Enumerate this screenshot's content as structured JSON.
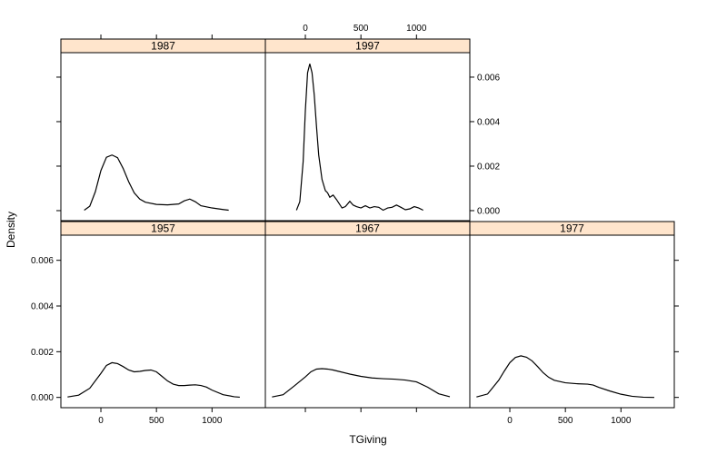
{
  "chart_data": {
    "type": "line",
    "chart_kind": "density-lattice",
    "xlabel": "TGiving",
    "ylabel": "Density",
    "xlim": [
      -360,
      1480
    ],
    "ylim": [
      -0.00045,
      0.0071
    ],
    "x_ticks": [
      0,
      500,
      1000
    ],
    "y_ticks": [
      0.0,
      0.002,
      0.004,
      0.006
    ],
    "x_tick_labels": [
      "0",
      "500",
      "1000"
    ],
    "y_tick_labels": [
      "0.000",
      "0.002",
      "0.004",
      "0.006"
    ],
    "colors": {
      "strip_fill": "#FFE5CC",
      "line": "#000000",
      "frame": "#000000"
    },
    "panels": [
      {
        "label": "1957",
        "x": [
          -300,
          -200,
          -100,
          0,
          50,
          100,
          150,
          200,
          250,
          300,
          350,
          400,
          450,
          500,
          550,
          600,
          650,
          700,
          750,
          800,
          850,
          900,
          950,
          1000,
          1100,
          1200,
          1250
        ],
        "y": [
          2e-05,
          0.0001,
          0.0004,
          0.00105,
          0.0014,
          0.00152,
          0.00148,
          0.00135,
          0.0012,
          0.00112,
          0.00114,
          0.00118,
          0.0012,
          0.00112,
          0.00092,
          0.00072,
          0.00058,
          0.00052,
          0.00052,
          0.00054,
          0.00055,
          0.00052,
          0.00045,
          0.00032,
          0.00012,
          3e-05,
          1e-05
        ]
      },
      {
        "label": "1967",
        "x": [
          -300,
          -200,
          -100,
          0,
          50,
          100,
          150,
          200,
          250,
          300,
          400,
          500,
          600,
          700,
          800,
          900,
          1000,
          1100,
          1200,
          1300
        ],
        "y": [
          2e-05,
          0.00012,
          0.0005,
          0.0009,
          0.00112,
          0.00124,
          0.00126,
          0.00124,
          0.0012,
          0.00114,
          0.00102,
          0.00092,
          0.00085,
          0.00082,
          0.0008,
          0.00076,
          0.00068,
          0.00045,
          0.00016,
          3e-05
        ]
      },
      {
        "label": "1977",
        "x": [
          -300,
          -200,
          -100,
          -50,
          0,
          50,
          100,
          150,
          200,
          250,
          300,
          350,
          400,
          500,
          600,
          700,
          750,
          800,
          900,
          1000,
          1100,
          1200,
          1300
        ],
        "y": [
          2e-05,
          0.00015,
          0.00075,
          0.00115,
          0.00152,
          0.00175,
          0.00182,
          0.00176,
          0.0016,
          0.00135,
          0.00108,
          0.00088,
          0.00075,
          0.00064,
          0.0006,
          0.00058,
          0.00054,
          0.00044,
          0.00028,
          0.00014,
          5e-05,
          1e-05,
          0.0
        ]
      },
      {
        "label": "1987",
        "x": [
          -150,
          -100,
          -50,
          0,
          50,
          100,
          150,
          200,
          250,
          300,
          350,
          400,
          500,
          600,
          700,
          750,
          800,
          850,
          900,
          1000,
          1100,
          1150
        ],
        "y": [
          2e-05,
          0.0002,
          0.00085,
          0.0018,
          0.0024,
          0.0025,
          0.00238,
          0.0019,
          0.0013,
          0.0008,
          0.00052,
          0.00038,
          0.00028,
          0.00026,
          0.0003,
          0.00044,
          0.00052,
          0.0004,
          0.00022,
          0.00012,
          5e-05,
          2e-05
        ]
      },
      {
        "label": "1997",
        "x": [
          -80,
          -50,
          -20,
          0,
          20,
          40,
          60,
          80,
          100,
          120,
          150,
          180,
          200,
          220,
          250,
          280,
          300,
          330,
          360,
          400,
          430,
          460,
          500,
          540,
          580,
          620,
          660,
          700,
          740,
          780,
          820,
          860,
          900,
          940,
          980,
          1020,
          1060
        ],
        "y": [
          2e-05,
          0.0004,
          0.0022,
          0.0045,
          0.0062,
          0.0066,
          0.0062,
          0.0052,
          0.0038,
          0.0025,
          0.0014,
          0.0009,
          0.0008,
          0.0006,
          0.0007,
          0.0005,
          0.00035,
          0.00012,
          0.00018,
          0.00042,
          0.00025,
          0.00018,
          0.00012,
          0.00022,
          0.00012,
          0.00018,
          0.00015,
          2e-05,
          0.00012,
          0.00015,
          0.00025,
          0.00015,
          4e-05,
          8e-05,
          0.00018,
          0.00012,
          2e-05
        ]
      }
    ]
  }
}
